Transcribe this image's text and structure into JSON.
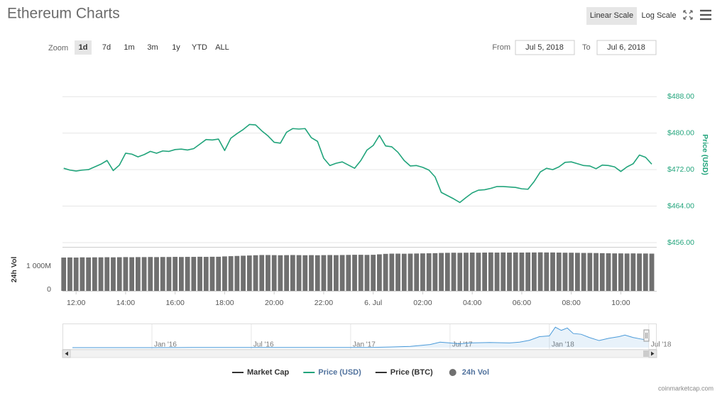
{
  "toolbar": {
    "scale_buttons": [
      "Linear Scale",
      "Log Scale"
    ],
    "scale_selected": 0,
    "zoom_label": "Zoom",
    "zoom_buttons": [
      "1d",
      "7d",
      "1m",
      "3m",
      "1y",
      "YTD",
      "ALL"
    ],
    "zoom_selected": 0,
    "from_label": "From",
    "from": "Jul 5, 2018",
    "to_label": "To",
    "to": "Jul 6, 2018"
  },
  "credit": "coinmarketcap.com",
  "chart_data": [
    {
      "type": "line",
      "title": "Ethereum Charts",
      "x": [
        11.5,
        11.75,
        12,
        12.25,
        12.5,
        12.75,
        13,
        13.25,
        13.5,
        13.75,
        14,
        14.25,
        14.5,
        14.75,
        15,
        15.25,
        15.5,
        15.75,
        16,
        16.25,
        16.5,
        16.75,
        17,
        17.25,
        17.5,
        17.75,
        18,
        18.25,
        18.5,
        18.75,
        19,
        19.25,
        19.5,
        19.75,
        20,
        20.25,
        20.5,
        20.75,
        21,
        21.25,
        21.5,
        21.75,
        22,
        22.25,
        22.5,
        22.75,
        23,
        23.25,
        23.5,
        23.75,
        24,
        24.25,
        24.5,
        24.75,
        25,
        25.25,
        25.5,
        25.75,
        26,
        26.25,
        26.5,
        26.75,
        27,
        27.25,
        27.5,
        27.75,
        28,
        28.25,
        28.5,
        28.75,
        29,
        29.25,
        29.5,
        29.75,
        30,
        30.25,
        30.5,
        30.75,
        31,
        31.25,
        31.5,
        31.75,
        32,
        32.25,
        32.5,
        32.75,
        33,
        33.25,
        33.5,
        33.75,
        34,
        34.25,
        34.5,
        34.75,
        35,
        35.25
      ],
      "xlim": [
        11.45,
        35.45
      ],
      "xticks": [
        {
          "value": 12,
          "label": "12:00"
        },
        {
          "value": 14,
          "label": "14:00"
        },
        {
          "value": 16,
          "label": "16:00"
        },
        {
          "value": 18,
          "label": "18:00"
        },
        {
          "value": 20,
          "label": "20:00"
        },
        {
          "value": 22,
          "label": "22:00"
        },
        {
          "value": 24,
          "label": "6. Jul"
        },
        {
          "value": 26,
          "label": "02:00"
        },
        {
          "value": 28,
          "label": "04:00"
        },
        {
          "value": 30,
          "label": "06:00"
        },
        {
          "value": 32,
          "label": "08:00"
        },
        {
          "value": 34,
          "label": "10:00"
        }
      ],
      "ylim": [
        456,
        495.5
      ],
      "yticks": [
        {
          "value": 456,
          "label": "$456.00"
        },
        {
          "value": 464,
          "label": "$464.00"
        },
        {
          "value": 472,
          "label": "$472.00"
        },
        {
          "value": 480,
          "label": "$480.00"
        },
        {
          "value": 488,
          "label": "$488.00"
        }
      ],
      "y_label": "Price (USD)",
      "y2lim": [
        0,
        1840
      ],
      "y2ticks": [
        0,
        {
          "value": 1000,
          "label": "1 000M"
        }
      ],
      "y2_label": "24h Vol",
      "grid": true,
      "series": [
        {
          "name": "Market Cap",
          "color": "#333333",
          "visible": false
        },
        {
          "name": "Price (USD)",
          "color": "#21a47b",
          "visible": true,
          "values": [
            472.3,
            471.9,
            471.7,
            471.9,
            472.0,
            472.6,
            473.2,
            474.0,
            471.8,
            473.0,
            475.6,
            475.4,
            474.8,
            475.3,
            476.0,
            475.6,
            476.1,
            476.0,
            476.4,
            476.5,
            476.3,
            476.6,
            477.6,
            478.6,
            478.5,
            478.7,
            476.2,
            478.9,
            479.9,
            480.8,
            481.9,
            481.8,
            480.5,
            479.4,
            478.0,
            477.8,
            480.2,
            481.0,
            480.9,
            481.0,
            479.0,
            478.2,
            474.5,
            472.9,
            473.4,
            473.7,
            473.0,
            472.3,
            474.0,
            476.3,
            477.3,
            479.5,
            477.2,
            477.0,
            475.8,
            474.0,
            472.8,
            472.9,
            472.5,
            471.9,
            470.4,
            467.0,
            466.3,
            465.6,
            464.8,
            465.9,
            466.9,
            467.5,
            467.6,
            467.9,
            468.3,
            468.3,
            468.2,
            468.1,
            467.8,
            467.7,
            469.4,
            471.5,
            472.3,
            472.0,
            472.6,
            473.6,
            473.7,
            473.3,
            472.9,
            472.8,
            472.2,
            473.0,
            472.9,
            472.6,
            471.6,
            472.6,
            473.3,
            475.2,
            474.7,
            473.2
          ]
        },
        {
          "name": "Price (BTC)",
          "color": "#333333",
          "visible": false
        },
        {
          "name": "24h Vol",
          "color": "#707070",
          "visible": true,
          "type": "column",
          "axis": "y2",
          "values": [
            1440,
            1445,
            1440,
            1450,
            1445,
            1450,
            1450,
            1455,
            1450,
            1455,
            1460,
            1455,
            1460,
            1460,
            1465,
            1460,
            1465,
            1465,
            1470,
            1465,
            1470,
            1470,
            1475,
            1470,
            1475,
            1475,
            1490,
            1500,
            1510,
            1520,
            1530,
            1540,
            1550,
            1550,
            1545,
            1540,
            1545,
            1550,
            1545,
            1540,
            1545,
            1540,
            1545,
            1550,
            1545,
            1550,
            1555,
            1560,
            1560,
            1555,
            1560,
            1580,
            1600,
            1610,
            1610,
            1605,
            1610,
            1615,
            1620,
            1625,
            1630,
            1640,
            1645,
            1650,
            1645,
            1650,
            1655,
            1650,
            1655,
            1660,
            1655,
            1660,
            1655,
            1660,
            1655,
            1660,
            1660,
            1665,
            1660,
            1660,
            1655,
            1650,
            1650,
            1645,
            1640,
            1640,
            1635,
            1630,
            1625,
            1620,
            1620,
            1615,
            1620,
            1615,
            1615,
            1610
          ]
        }
      ]
    },
    {
      "type": "area",
      "color": "#4a9ad9",
      "x": [
        2015.6,
        2015.8,
        2016.0,
        2016.2,
        2016.4,
        2016.6,
        2016.8,
        2017.0,
        2017.1,
        2017.2,
        2017.3,
        2017.4,
        2017.45,
        2017.5,
        2017.55,
        2017.6,
        2017.7,
        2017.8,
        2017.85,
        2017.9,
        2017.95,
        2018.0,
        2018.03,
        2018.06,
        2018.09,
        2018.12,
        2018.16,
        2018.2,
        2018.25,
        2018.3,
        2018.35,
        2018.38,
        2018.42,
        2018.46,
        2018.5
      ],
      "values": [
        1,
        1,
        1,
        10,
        14,
        12,
        11,
        9,
        12,
        40,
        80,
        200,
        350,
        300,
        250,
        300,
        330,
        300,
        350,
        470,
        700,
        750,
        1300,
        1100,
        1250,
        900,
        850,
        650,
        450,
        600,
        700,
        800,
        650,
        550,
        470
      ],
      "xlim": [
        2015.55,
        2018.54
      ],
      "xticks": [
        {
          "value": 2016,
          "label": "Jan '16"
        },
        {
          "value": 2016.5,
          "label": "Jul '16"
        },
        {
          "value": 2017,
          "label": "Jan '17"
        },
        {
          "value": 2017.5,
          "label": "Jul '17"
        },
        {
          "value": 2018,
          "label": "Jan '18"
        },
        {
          "value": 2018.5,
          "label": "Jul '18"
        }
      ],
      "ylim": [
        0,
        1400
      ]
    }
  ]
}
